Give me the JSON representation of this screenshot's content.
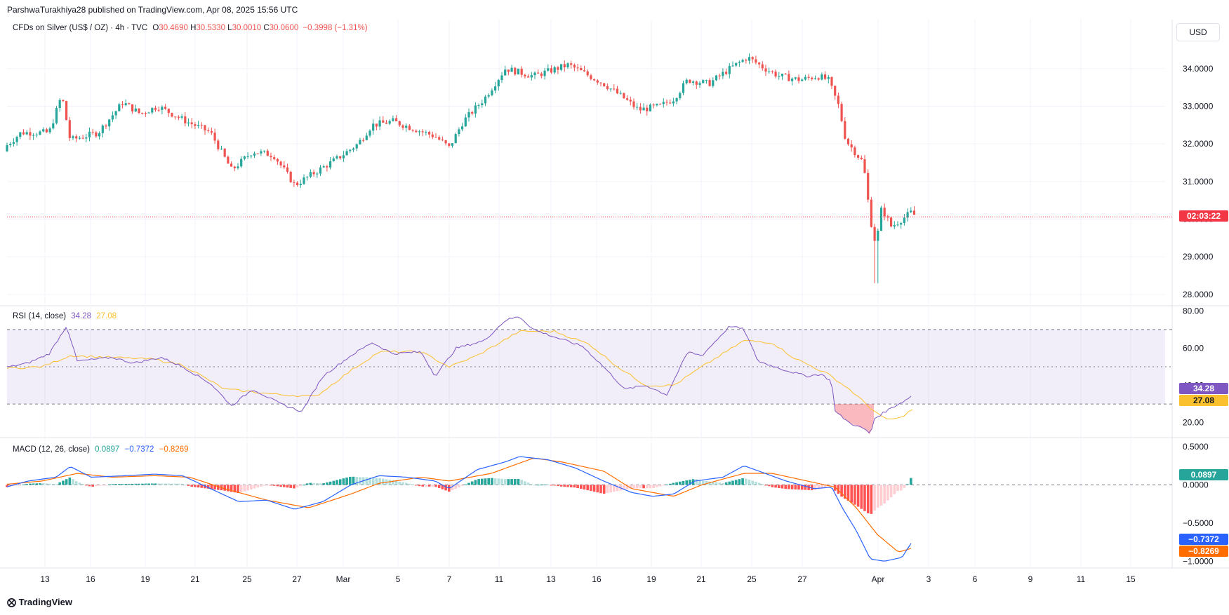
{
  "publisher": "ParshwaTurakhiya28 published on TradingView.com, Apr 08, 2025 15:56 UTC",
  "main_legend": {
    "symbol": "CFDs on Silver (US$ / OZ) · 4h · TVC",
    "open_label": "O",
    "open": "30.4690",
    "high_label": "H",
    "high": "30.5330",
    "low_label": "L",
    "low": "30.0010",
    "close_label": "C",
    "close": "30.0600",
    "change": "−0.3998 (−1.31%)"
  },
  "currency_button": "USD",
  "countdown_label": "02:03:22",
  "rsi_legend": {
    "title": "RSI (14, close)",
    "rsi": "34.28",
    "ma": "27.08"
  },
  "macd_legend": {
    "title": "MACD (12, 26, close)",
    "hist": "0.0897",
    "macd": "−0.7372",
    "signal": "−0.8269"
  },
  "price_pills": {
    "rsi": "34.28",
    "rsi_ma": "27.08",
    "hist": "0.0897",
    "macd": "−0.7372",
    "signal": "−0.8269"
  },
  "brand": "TradingView",
  "colors": {
    "up": "#26a69a",
    "down": "#ef5350",
    "rsi": "#7e57c2",
    "rsi_ma": "#fbc02d",
    "macd": "#2962ff",
    "signal": "#ff6d00"
  },
  "chart_data": [
    {
      "type": "candlestick",
      "title": "CFDs on Silver (US$ / OZ) · 4h · TVC",
      "x_ticks": [
        "13",
        "16",
        "19",
        "21",
        "25",
        "27",
        "Mar",
        "5",
        "7",
        "11",
        "13",
        "16",
        "19",
        "21",
        "25",
        "27",
        "Apr",
        "3",
        "6",
        "9",
        "11",
        "15"
      ],
      "y_ticks": [
        "28.0000",
        "29.0000",
        "30.0000",
        "31.0000",
        "32.0000",
        "33.0000",
        "34.0000"
      ],
      "ylim": [
        27.7,
        35.3
      ],
      "last_price": 30.06,
      "close_path_anchors": [
        [
          0,
          31.8
        ],
        [
          30,
          32.3
        ],
        [
          70,
          32.3
        ],
        [
          88,
          33.3
        ],
        [
          100,
          32.1
        ],
        [
          140,
          32.3
        ],
        [
          175,
          33.1
        ],
        [
          200,
          32.8
        ],
        [
          225,
          33.0
        ],
        [
          265,
          32.6
        ],
        [
          300,
          32.3
        ],
        [
          330,
          31.3
        ],
        [
          360,
          31.8
        ],
        [
          390,
          31.7
        ],
        [
          420,
          30.9
        ],
        [
          445,
          31.2
        ],
        [
          480,
          31.6
        ],
        [
          510,
          32.0
        ],
        [
          530,
          32.5
        ],
        [
          560,
          32.6
        ],
        [
          590,
          32.4
        ],
        [
          620,
          32.2
        ],
        [
          640,
          31.9
        ],
        [
          660,
          32.6
        ],
        [
          690,
          33.2
        ],
        [
          720,
          34.0
        ],
        [
          760,
          33.8
        ],
        [
          810,
          34.1
        ],
        [
          830,
          33.9
        ],
        [
          860,
          33.6
        ],
        [
          890,
          33.2
        ],
        [
          910,
          32.9
        ],
        [
          940,
          33.0
        ],
        [
          960,
          33.2
        ],
        [
          980,
          33.7
        ],
        [
          1010,
          33.6
        ],
        [
          1040,
          34.0
        ],
        [
          1065,
          34.3
        ],
        [
          1090,
          34.0
        ],
        [
          1110,
          33.8
        ],
        [
          1140,
          33.7
        ],
        [
          1165,
          33.8
        ],
        [
          1180,
          33.7
        ],
        [
          1195,
          33.0
        ],
        [
          1205,
          32.1
        ],
        [
          1230,
          31.5
        ],
        [
          1240,
          30.0
        ],
        [
          1248,
          29.3
        ],
        [
          1256,
          30.3
        ],
        [
          1270,
          29.8
        ],
        [
          1285,
          30.0
        ],
        [
          1300,
          30.2
        ],
        [
          1304,
          30.06
        ]
      ],
      "low_extreme": 28.3
    },
    {
      "type": "line",
      "title": "RSI (14, close)",
      "y_ticks": [
        "20.00",
        "40.00",
        "60.00",
        "80.00"
      ],
      "ylim": [
        12,
        82
      ],
      "bands": [
        30,
        50,
        70
      ],
      "series": [
        {
          "name": "RSI",
          "last": 34.28,
          "anchors": [
            [
              0,
              49
            ],
            [
              40,
              52
            ],
            [
              70,
              57
            ],
            [
              95,
              72
            ],
            [
              110,
              53
            ],
            [
              160,
              55
            ],
            [
              190,
              52
            ],
            [
              230,
              55
            ],
            [
              260,
              50
            ],
            [
              300,
              41
            ],
            [
              330,
              29
            ],
            [
              360,
              38
            ],
            [
              400,
              30
            ],
            [
              430,
              26
            ],
            [
              460,
              45
            ],
            [
              500,
              56
            ],
            [
              530,
              63
            ],
            [
              560,
              57
            ],
            [
              600,
              58
            ],
            [
              620,
              45
            ],
            [
              650,
              60
            ],
            [
              690,
              64
            ],
            [
              720,
              75
            ],
            [
              740,
              77
            ],
            [
              760,
              70
            ],
            [
              790,
              66
            ],
            [
              830,
              61
            ],
            [
              860,
              50
            ],
            [
              890,
              38
            ],
            [
              920,
              40
            ],
            [
              950,
              35
            ],
            [
              980,
              58
            ],
            [
              1000,
              56
            ],
            [
              1040,
              72
            ],
            [
              1060,
              70
            ],
            [
              1080,
              53
            ],
            [
              1120,
              48
            ],
            [
              1150,
              45
            ],
            [
              1170,
              46
            ],
            [
              1185,
              42
            ],
            [
              1190,
              26
            ],
            [
              1210,
              20
            ],
            [
              1235,
              16
            ],
            [
              1240,
              13
            ],
            [
              1245,
              22
            ],
            [
              1270,
              28
            ],
            [
              1290,
              32
            ],
            [
              1298,
              34.28
            ]
          ]
        },
        {
          "name": "RSI-based MA",
          "last": 27.08,
          "anchors": [
            [
              0,
              49
            ],
            [
              60,
              50
            ],
            [
              100,
              56
            ],
            [
              160,
              55
            ],
            [
              220,
              54
            ],
            [
              260,
              51
            ],
            [
              320,
              38
            ],
            [
              400,
              35
            ],
            [
              450,
              34
            ],
            [
              500,
              48
            ],
            [
              540,
              58
            ],
            [
              600,
              58
            ],
            [
              640,
              50
            ],
            [
              680,
              56
            ],
            [
              740,
              69
            ],
            [
              790,
              69
            ],
            [
              840,
              62
            ],
            [
              880,
              50
            ],
            [
              920,
              40
            ],
            [
              960,
              40
            ],
            [
              1000,
              50
            ],
            [
              1060,
              64
            ],
            [
              1100,
              63
            ],
            [
              1130,
              55
            ],
            [
              1180,
              46
            ],
            [
              1210,
              38
            ],
            [
              1240,
              28
            ],
            [
              1260,
              22
            ],
            [
              1280,
              22
            ],
            [
              1300,
              27.08
            ]
          ]
        }
      ]
    },
    {
      "type": "line",
      "title": "MACD (12, 26, close)",
      "y_ticks": [
        "0.5000",
        "0.0000",
        "−0.5000",
        "−1.0000"
      ],
      "ylim": [
        -1.07,
        0.6
      ],
      "series": [
        {
          "name": "MACD",
          "last": -0.7372,
          "anchors": [
            [
              0,
              -0.05
            ],
            [
              40,
              0.05
            ],
            [
              80,
              0.1
            ],
            [
              100,
              0.24
            ],
            [
              130,
              0.1
            ],
            [
              180,
              0.12
            ],
            [
              220,
              0.14
            ],
            [
              260,
              0.12
            ],
            [
              300,
              -0.05
            ],
            [
              340,
              -0.22
            ],
            [
              380,
              -0.2
            ],
            [
              420,
              -0.32
            ],
            [
              460,
              -0.22
            ],
            [
              500,
              0.0
            ],
            [
              540,
              0.12
            ],
            [
              580,
              0.1
            ],
            [
              620,
              0.05
            ],
            [
              640,
              -0.05
            ],
            [
              680,
              0.2
            ],
            [
              720,
              0.3
            ],
            [
              740,
              0.37
            ],
            [
              780,
              0.33
            ],
            [
              820,
              0.22
            ],
            [
              860,
              0.05
            ],
            [
              900,
              -0.1
            ],
            [
              930,
              -0.15
            ],
            [
              960,
              -0.12
            ],
            [
              990,
              0.05
            ],
            [
              1030,
              0.1
            ],
            [
              1060,
              0.25
            ],
            [
              1090,
              0.15
            ],
            [
              1120,
              0.05
            ],
            [
              1160,
              -0.05
            ],
            [
              1185,
              -0.03
            ],
            [
              1200,
              -0.3
            ],
            [
              1220,
              -0.6
            ],
            [
              1240,
              -0.97
            ],
            [
              1260,
              -1.0
            ],
            [
              1285,
              -0.95
            ],
            [
              1300,
              -0.7372
            ]
          ]
        },
        {
          "name": "Signal",
          "last": -0.8269,
          "anchors": [
            [
              0,
              0.0
            ],
            [
              60,
              0.05
            ],
            [
              110,
              0.15
            ],
            [
              160,
              0.1
            ],
            [
              220,
              0.12
            ],
            [
              270,
              0.1
            ],
            [
              320,
              -0.05
            ],
            [
              380,
              -0.2
            ],
            [
              440,
              -0.3
            ],
            [
              500,
              -0.12
            ],
            [
              540,
              0.02
            ],
            [
              600,
              0.1
            ],
            [
              640,
              0.05
            ],
            [
              700,
              0.15
            ],
            [
              760,
              0.35
            ],
            [
              800,
              0.3
            ],
            [
              860,
              0.18
            ],
            [
              900,
              -0.05
            ],
            [
              960,
              -0.15
            ],
            [
              1000,
              0.0
            ],
            [
              1060,
              0.15
            ],
            [
              1100,
              0.15
            ],
            [
              1150,
              0.05
            ],
            [
              1190,
              -0.03
            ],
            [
              1220,
              -0.3
            ],
            [
              1250,
              -0.65
            ],
            [
              1280,
              -0.88
            ],
            [
              1300,
              -0.8269
            ]
          ]
        },
        {
          "name": "Histogram",
          "last": 0.0897
        }
      ]
    }
  ]
}
